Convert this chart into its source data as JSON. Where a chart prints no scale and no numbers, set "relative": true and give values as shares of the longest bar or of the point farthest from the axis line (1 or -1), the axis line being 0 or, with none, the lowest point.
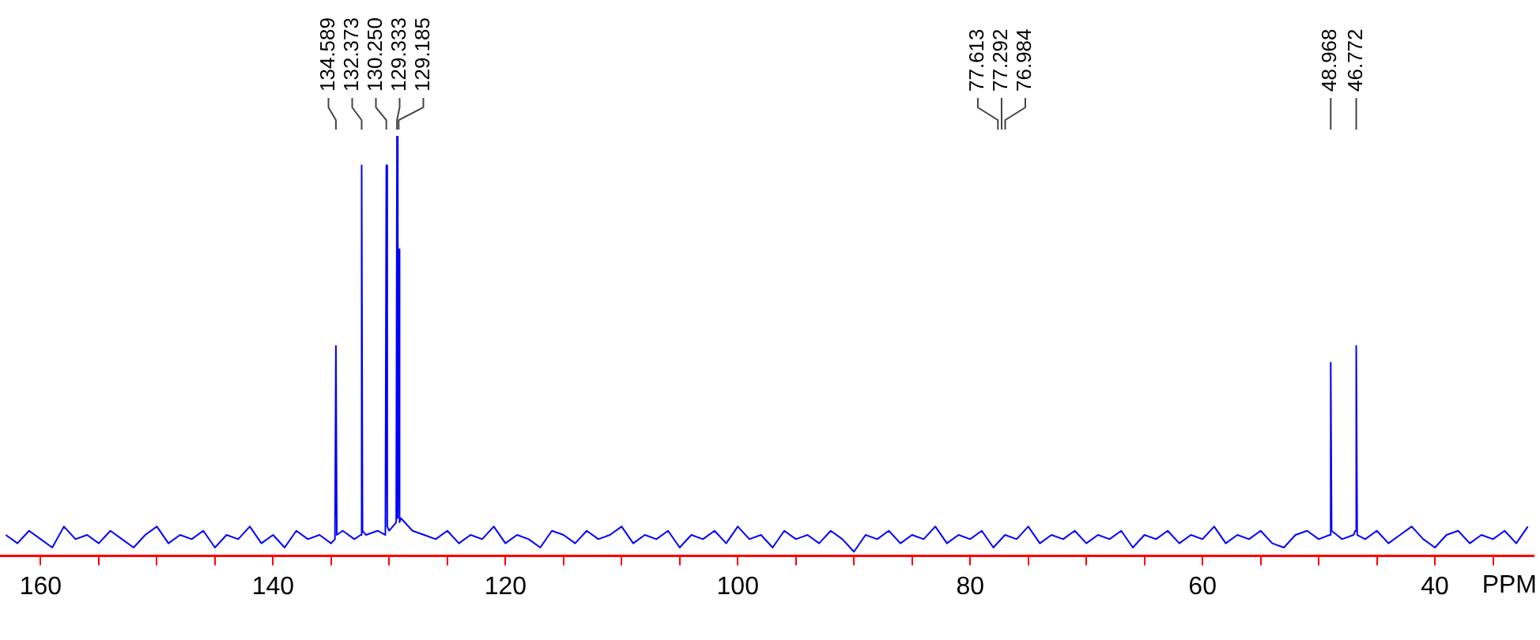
{
  "chart_data": {
    "type": "line",
    "relative": true,
    "xlabel": "PPM",
    "xlim": [
      163.5,
      31.5
    ],
    "xticks": [
      160,
      {
        "value": 155,
        "label": null
      },
      {
        "value": 150,
        "label": null
      },
      {
        "value": 145,
        "label": null
      },
      140,
      {
        "value": 135,
        "label": null
      },
      {
        "value": 130,
        "label": null
      },
      {
        "value": 125,
        "label": null
      },
      120,
      {
        "value": 115,
        "label": null
      },
      {
        "value": 110,
        "label": null
      },
      {
        "value": 105,
        "label": null
      },
      100,
      {
        "value": 95,
        "label": null
      },
      {
        "value": 90,
        "label": null
      },
      {
        "value": 85,
        "label": null
      },
      80,
      {
        "value": 75,
        "label": null
      },
      {
        "value": 70,
        "label": null
      },
      {
        "value": 65,
        "label": null
      },
      60,
      {
        "value": 55,
        "label": null
      },
      {
        "value": 50,
        "label": null
      },
      {
        "value": 45,
        "label": null
      },
      40,
      {
        "value": 35,
        "label": null
      }
    ],
    "annotations": [
      {
        "text": "134.589",
        "x": 134.589
      },
      {
        "text": "132.373",
        "x": 132.373
      },
      {
        "text": "130.250",
        "x": 130.25
      },
      {
        "text": "129.333",
        "x": 129.333
      },
      {
        "text": "129.185",
        "x": 129.185
      },
      {
        "text": "77.613",
        "x": 77.613
      },
      {
        "text": "77.292",
        "x": 77.292
      },
      {
        "text": "76.984",
        "x": 76.984
      },
      {
        "text": "48.968",
        "x": 48.968
      },
      {
        "text": "46.772",
        "x": 46.772
      }
    ],
    "series": [
      {
        "color": "#0000ff",
        "x": [
          163,
          162,
          161,
          160,
          159,
          158,
          157,
          156,
          155,
          154,
          153,
          152,
          151,
          150,
          149,
          148,
          147,
          146,
          145,
          144,
          143,
          142,
          141,
          140,
          139,
          138,
          137,
          136,
          135,
          134.67,
          134.589,
          134.51,
          134,
          133,
          132.45,
          132.373,
          132.3,
          132,
          131,
          130.33,
          130.25,
          130.17,
          130,
          129.4,
          129.333,
          129.26,
          129.185,
          129.11,
          129,
          128,
          127,
          126,
          125,
          124,
          123,
          122,
          121,
          120,
          119,
          118,
          117,
          116,
          115,
          114,
          113,
          112,
          111,
          110,
          109,
          108,
          107,
          106,
          105,
          104,
          103,
          102,
          101,
          100,
          99,
          98,
          97,
          96,
          95,
          94,
          93,
          92,
          91,
          90,
          89,
          88,
          87,
          86,
          85,
          84,
          83,
          82,
          81,
          80,
          79,
          78,
          77,
          76,
          75,
          74,
          73,
          72,
          71,
          70,
          69,
          68,
          67,
          66,
          65,
          64,
          63,
          62,
          61,
          60,
          59,
          58,
          57,
          56,
          55,
          54,
          53,
          52,
          51,
          50,
          49.05,
          48.968,
          48.89,
          48,
          47,
          46.85,
          46.772,
          46.69,
          46,
          45,
          44,
          43,
          42,
          41,
          40,
          39,
          38,
          37,
          36,
          35,
          34,
          33,
          32
        ],
        "values": [
          0.05,
          0.03,
          0.06,
          0.04,
          0.02,
          0.07,
          0.04,
          0.05,
          0.03,
          0.06,
          0.04,
          0.02,
          0.05,
          0.07,
          0.03,
          0.05,
          0.04,
          0.06,
          0.02,
          0.05,
          0.04,
          0.07,
          0.03,
          0.05,
          0.02,
          0.06,
          0.04,
          0.05,
          0.03,
          0.04,
          0.5,
          0.05,
          0.06,
          0.04,
          0.05,
          0.93,
          0.06,
          0.05,
          0.06,
          0.05,
          0.93,
          0.07,
          0.06,
          0.08,
          1.0,
          0.09,
          0.73,
          0.08,
          0.09,
          0.06,
          0.05,
          0.04,
          0.06,
          0.03,
          0.05,
          0.04,
          0.07,
          0.03,
          0.05,
          0.04,
          0.02,
          0.06,
          0.05,
          0.03,
          0.06,
          0.04,
          0.05,
          0.07,
          0.03,
          0.05,
          0.04,
          0.06,
          0.02,
          0.05,
          0.04,
          0.06,
          0.03,
          0.07,
          0.04,
          0.05,
          0.02,
          0.06,
          0.04,
          0.05,
          0.03,
          0.06,
          0.04,
          0.01,
          0.05,
          0.04,
          0.06,
          0.03,
          0.05,
          0.04,
          0.07,
          0.03,
          0.05,
          0.04,
          0.06,
          0.02,
          0.05,
          0.04,
          0.07,
          0.03,
          0.05,
          0.04,
          0.06,
          0.03,
          0.05,
          0.04,
          0.06,
          0.02,
          0.05,
          0.04,
          0.06,
          0.03,
          0.05,
          0.04,
          0.07,
          0.03,
          0.05,
          0.04,
          0.06,
          0.03,
          0.02,
          0.05,
          0.06,
          0.04,
          0.05,
          0.46,
          0.06,
          0.04,
          0.05,
          0.06,
          0.5,
          0.05,
          0.04,
          0.06,
          0.03,
          0.05,
          0.07,
          0.04,
          0.02,
          0.05,
          0.06,
          0.03,
          0.05,
          0.04,
          0.06,
          0.03,
          0.07
        ]
      }
    ]
  }
}
